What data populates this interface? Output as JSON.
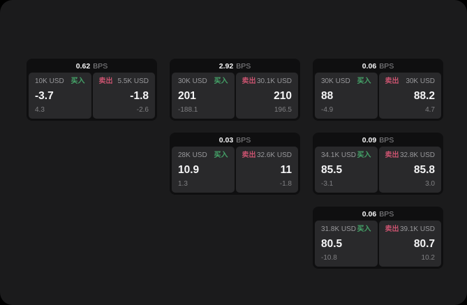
{
  "labels": {
    "bps_unit": "BPS",
    "buy": "买入",
    "sell": "卖出"
  },
  "colors": {
    "page_background": "#000000",
    "panel_background": "#1b1b1c",
    "card_background": "#0f0f10",
    "tile_background": "#29292b",
    "buy_accent": "#45a469",
    "sell_accent": "#c9536f",
    "text_primary": "#f5f5f6",
    "text_secondary": "#98989b"
  },
  "cards": [
    {
      "col": 1,
      "row": 1,
      "bps": "0.62",
      "buy": {
        "size": "10K USD",
        "price": "-3.7",
        "delta": "4.3"
      },
      "sell": {
        "size": "5.5K USD",
        "price": "-1.8",
        "delta": "-2.6"
      }
    },
    {
      "col": 2,
      "row": 1,
      "bps": "2.92",
      "buy": {
        "size": "30K USD",
        "price": "201",
        "delta": "-188.1"
      },
      "sell": {
        "size": "30.1K USD",
        "price": "210",
        "delta": "196.5"
      }
    },
    {
      "col": 3,
      "row": 1,
      "bps": "0.06",
      "buy": {
        "size": "30K USD",
        "price": "88",
        "delta": "-4.9"
      },
      "sell": {
        "size": "30K USD",
        "price": "88.2",
        "delta": "4.7"
      }
    },
    {
      "col": 2,
      "row": 2,
      "bps": "0.03",
      "buy": {
        "size": "28K USD",
        "price": "10.9",
        "delta": "1.3"
      },
      "sell": {
        "size": "32.6K USD",
        "price": "11",
        "delta": "-1.8"
      }
    },
    {
      "col": 3,
      "row": 2,
      "bps": "0.09",
      "buy": {
        "size": "34.1K USD",
        "price": "85.5",
        "delta": "-3.1"
      },
      "sell": {
        "size": "32.8K USD",
        "price": "85.8",
        "delta": "3.0"
      }
    },
    {
      "col": 3,
      "row": 3,
      "bps": "0.06",
      "buy": {
        "size": "31.8K USD",
        "price": "80.5",
        "delta": "-10.8"
      },
      "sell": {
        "size": "39.1K USD",
        "price": "80.7",
        "delta": "10.2"
      }
    }
  ]
}
